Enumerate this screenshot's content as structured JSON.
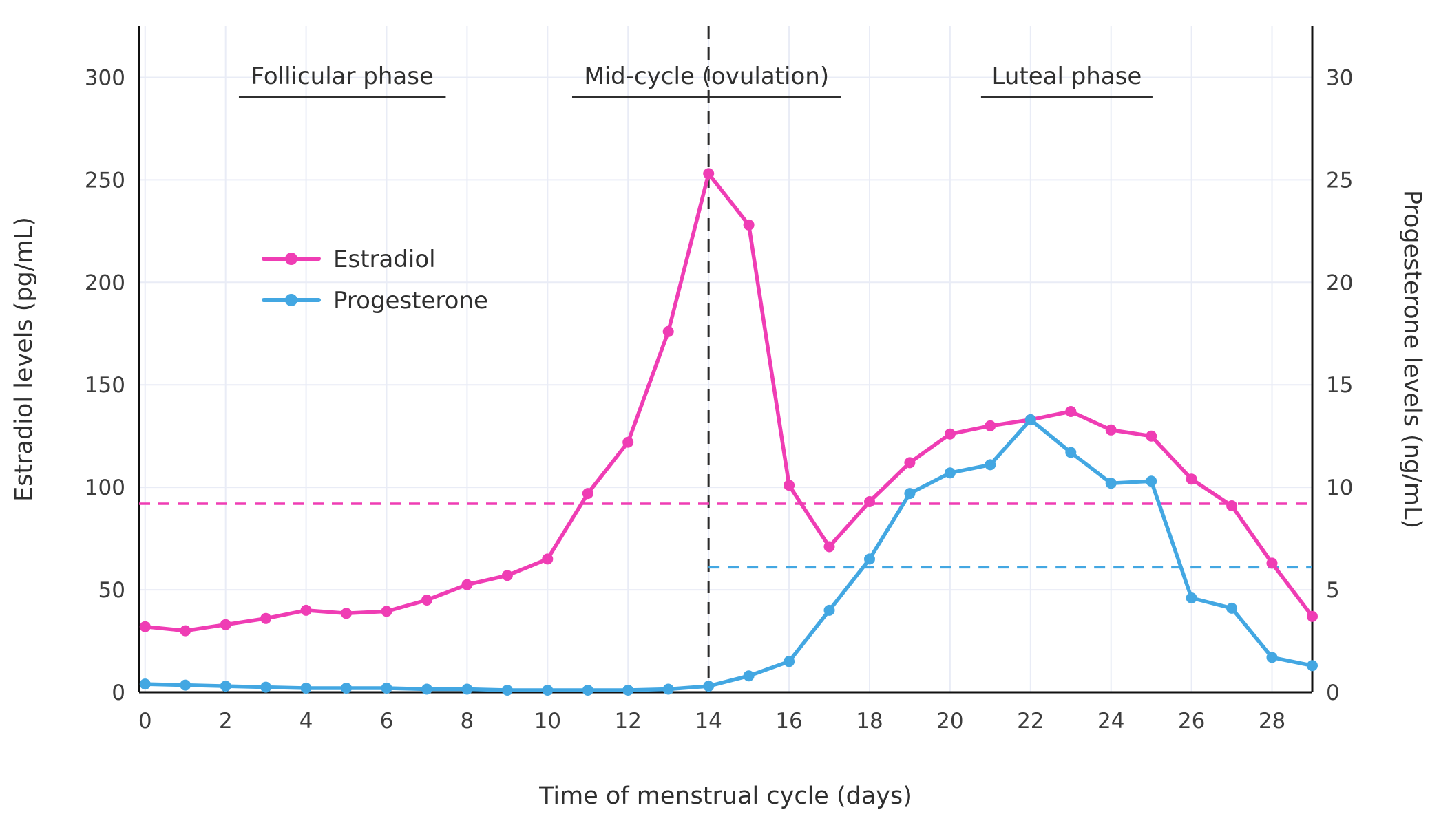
{
  "chart_data": {
    "type": "line",
    "title": "",
    "xlabel": "Time of menstrual cycle (days)",
    "ylabel_left": "Estradiol levels (pg/mL)",
    "ylabel_right": "Progesterone levels (ng/mL)",
    "xlim": [
      -0.15,
      29
    ],
    "ylim_left": [
      0,
      325
    ],
    "ylim_right": [
      0,
      32.5
    ],
    "xticks": [
      0,
      2,
      4,
      6,
      8,
      10,
      12,
      14,
      16,
      18,
      20,
      22,
      24,
      26,
      28
    ],
    "yticks_left": [
      0,
      50,
      100,
      150,
      200,
      250,
      300
    ],
    "yticks_right": [
      0,
      5,
      10,
      15,
      20,
      25,
      30
    ],
    "grid": true,
    "grid_color": "#e9ecf6",
    "axis_color": "#111111",
    "text_color": "#3d3d3d",
    "x": [
      0,
      1,
      2,
      3,
      4,
      5,
      6,
      7,
      8,
      9,
      10,
      11,
      12,
      13,
      14,
      15,
      16,
      17,
      18,
      19,
      20,
      21,
      22,
      23,
      24,
      25,
      26,
      27,
      28,
      29
    ],
    "series": [
      {
        "name": "Estradiol",
        "axis": "left",
        "color": "#ef3db4",
        "values": [
          32,
          30,
          33,
          36,
          40,
          38.5,
          39.5,
          45,
          52.5,
          57,
          65,
          97,
          122,
          176,
          253,
          228,
          101,
          71,
          93,
          112,
          126,
          130,
          133,
          137,
          128,
          125,
          104,
          91,
          63,
          37
        ]
      },
      {
        "name": "Progesterone",
        "axis": "right",
        "color": "#43a7e2",
        "values": [
          0.4,
          0.35,
          0.3,
          0.25,
          0.2,
          0.2,
          0.2,
          0.15,
          0.15,
          0.1,
          0.1,
          0.1,
          0.1,
          0.15,
          0.3,
          0.8,
          1.5,
          4.0,
          6.5,
          9.7,
          10.7,
          11.1,
          13.3,
          11.7,
          10.2,
          10.3,
          4.6,
          4.1,
          1.7,
          1.3
        ]
      }
    ],
    "reference_lines": [
      {
        "name": "estradiol-threshold",
        "axis": "left",
        "value": 92,
        "color": "#ef3db4",
        "dashed": true,
        "x_start": -0.15,
        "x_end": 29
      },
      {
        "name": "progesterone-threshold",
        "axis": "right",
        "value": 6.1,
        "color": "#43a7e2",
        "dashed": true,
        "x_start": 14,
        "x_end": 29
      }
    ],
    "vertical_line": {
      "name": "ovulation-line",
      "x": 14,
      "color": "#2a2a2a",
      "dashed": true
    },
    "annotations": [
      {
        "label": "Follicular phase",
        "center_day": 4.9,
        "underline_halfwidth_days": 2.57
      },
      {
        "label": "Mid-cycle (ovulation)",
        "center_day": 13.95,
        "underline_halfwidth_days": 3.34
      },
      {
        "label": "Luteal phase",
        "center_day": 22.9,
        "underline_halfwidth_days": 2.13
      }
    ],
    "legend": {
      "position": "upper-left-inside",
      "items": [
        "Estradiol",
        "Progesterone"
      ]
    }
  }
}
